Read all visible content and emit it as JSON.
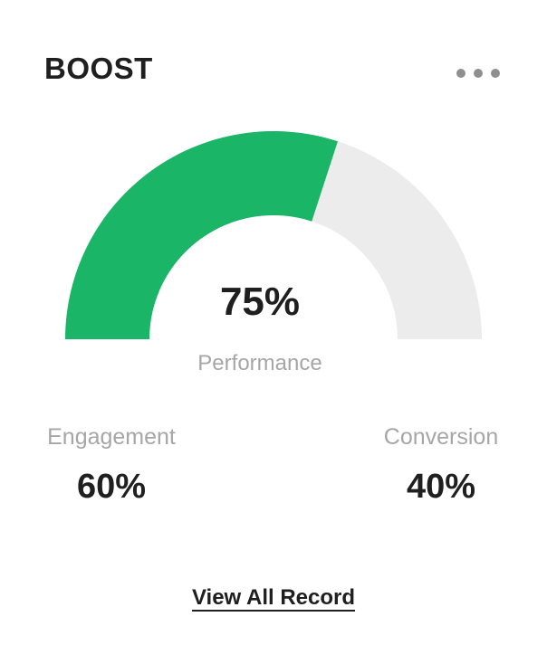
{
  "card": {
    "title": "BOOST",
    "menu_icon": "ellipsis-icon"
  },
  "chart_data": {
    "type": "pie",
    "variant": "semicircle-gauge",
    "start_angle_deg": 180,
    "end_angle_deg": 0,
    "series": [
      {
        "name": "Engagement",
        "value": 60,
        "color": "#1AB567"
      },
      {
        "name": "Conversion",
        "value": 40,
        "color": "#ECECEC"
      }
    ],
    "center_value": "75%",
    "center_label": "Performance",
    "legend": "none",
    "grid": "off"
  },
  "stats": [
    {
      "label": "Engagement",
      "value": "60%"
    },
    {
      "label": "Conversion",
      "value": "40%"
    }
  ],
  "footer": {
    "link_label": "View All Record"
  },
  "colors": {
    "accent_green": "#1AB567",
    "track_gray": "#ECECEC",
    "title_text": "#1F1F1F",
    "muted_text": "#A6A6A6",
    "value_text": "#1F1F1F",
    "menu_dots": "#8F8F8F",
    "card_bg": "#FFFFFF"
  }
}
